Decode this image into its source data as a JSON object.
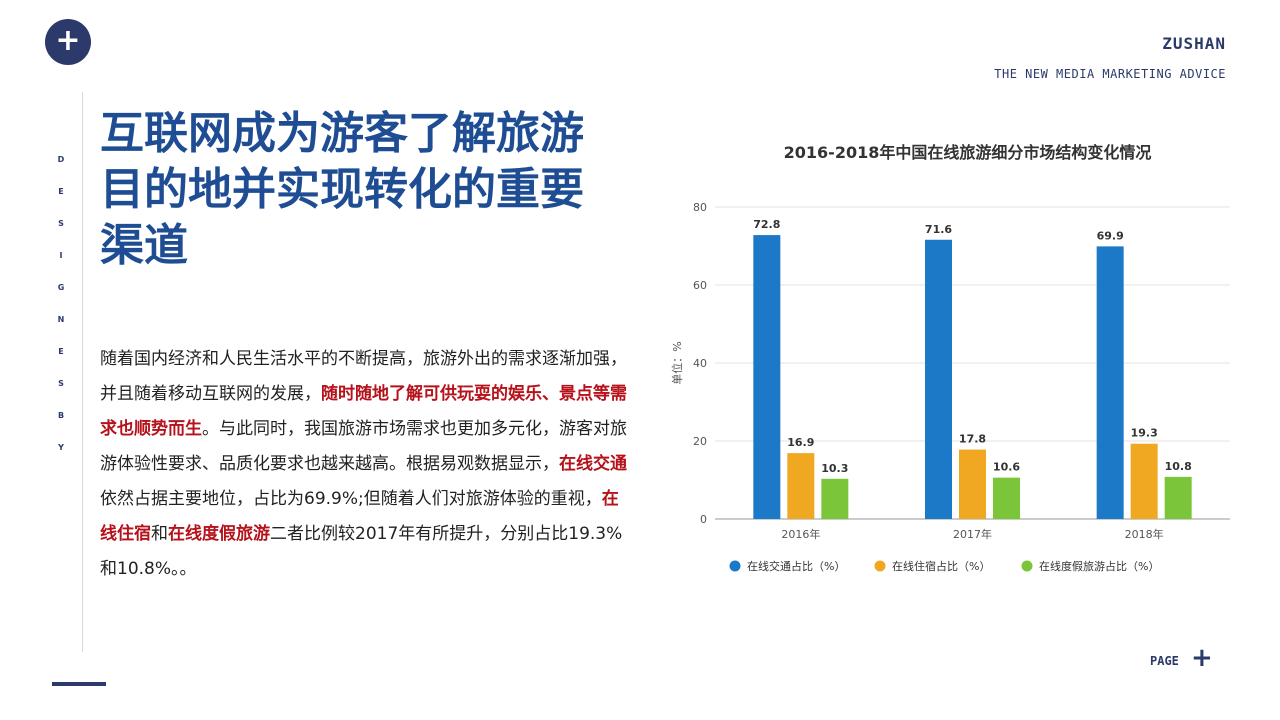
{
  "header": {
    "brand": "ZUSHAN",
    "tagline": "THE NEW MEDIA MARKETING ADVICE",
    "plus_icon": "plus-icon"
  },
  "sidebar": {
    "vertical_letters": [
      "D",
      "E",
      "S",
      "I",
      "G",
      "N",
      "E",
      "S",
      "B",
      "Y"
    ]
  },
  "main": {
    "title": "互联网成为游客了解旅游目的地并实现转化的重要渠道",
    "body": {
      "p1": "随着国内经济和人民生活水平的不断提高，旅游外出的需求逐渐加强，并且随着移动互联网的发展，",
      "h1": "随时随地了解可供玩耍的娱乐、景点等需求也顺势而生",
      "p2": "。与此同时，我国旅游市场需求也更加多元化，游客对旅游体验性要求、品质化要求也越来越高。根据易观数据显示，",
      "h2": "在线交通",
      "p3": "依然占据主要地位，占比为69.9%;但随着人们对旅游体验的重视，",
      "h3": "在线住宿",
      "p4": "和",
      "h4": "在线度假旅游",
      "p5": "二者比例较2017年有所提升，分别占比19.3%和10.8%。。"
    }
  },
  "footer": {
    "page_label": "PAGE"
  },
  "colors": {
    "navy": "#2b3a6b",
    "title_blue": "#1f4d94",
    "highlight_red": "#b5121b"
  },
  "chart_data": {
    "type": "bar",
    "title": "2016-2018年中国在线旅游细分市场结构变化情况",
    "ylabel": "单位：%",
    "xlabel": "",
    "categories": [
      "2016年",
      "2017年",
      "2018年"
    ],
    "ylim": [
      0,
      80
    ],
    "yticks": [
      0,
      20,
      40,
      60,
      80
    ],
    "grid": true,
    "legend_position": "bottom",
    "series": [
      {
        "name": "在线交通占比（%）",
        "values": [
          72.8,
          71.6,
          69.9
        ],
        "color": "#1b79c7"
      },
      {
        "name": "在线住宿占比（%）",
        "values": [
          16.9,
          17.8,
          19.3
        ],
        "color": "#f0a822"
      },
      {
        "name": "在线度假旅游占比（%）",
        "values": [
          10.3,
          10.6,
          10.8
        ],
        "color": "#7ac53a"
      }
    ]
  }
}
